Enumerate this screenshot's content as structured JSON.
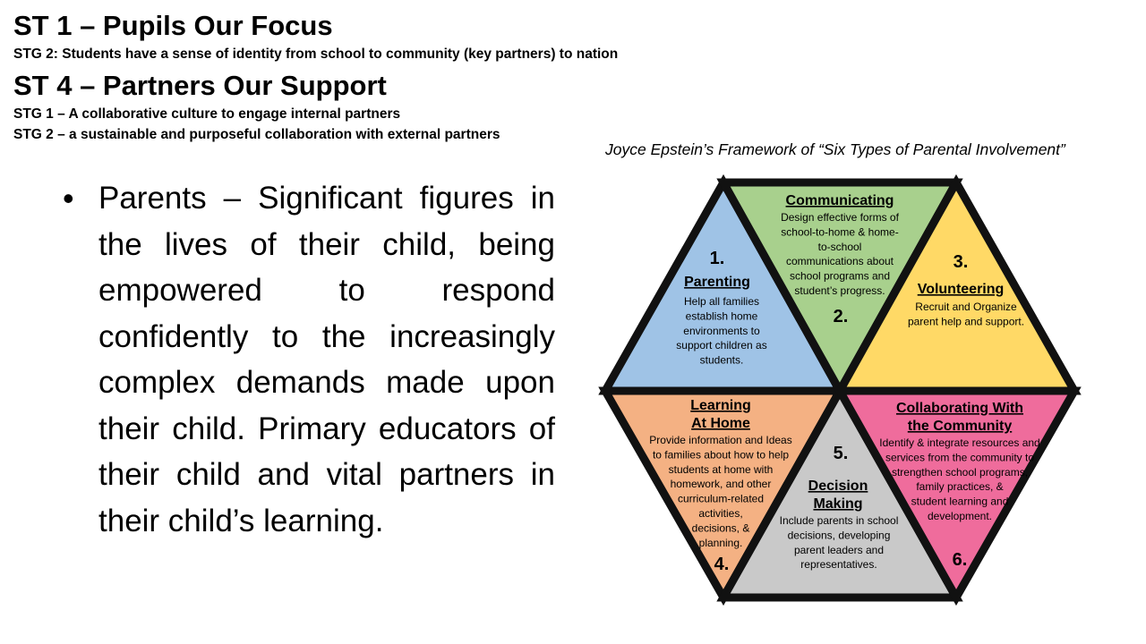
{
  "header": {
    "title_1": "ST 1 – Pupils Our Focus",
    "stg_1": "STG 2:  Students have a sense of identity from school to community (key partners) to nation",
    "title_2": "ST 4 – Partners Our Support",
    "stg_2": "STG 1 – A collaborative culture to engage internal partners",
    "stg_3": "STG 2 – a sustainable and purposeful collaboration with external partners"
  },
  "bullet": {
    "marker": "•",
    "text": "Parents – Significant figures in the lives of their child, being empowered to respond confidently to the increasingly complex demands made upon their child. Primary educators of their child and vital partners in their child’s learning."
  },
  "framework": {
    "caption": "Joyce Epstein’s Framework of “Six Types of Parental Involvement”",
    "sections": [
      {
        "number": "1.",
        "title": [
          "Parenting"
        ],
        "body": [
          "Help all families",
          "establish home",
          "environments to",
          "support children as",
          "students."
        ],
        "color": "#9fc3e6"
      },
      {
        "number": "2.",
        "title": [
          "Communicating"
        ],
        "body": [
          "Design effective forms of",
          "school-to-home & home-",
          "to-school",
          "communications about",
          "school programs and",
          "student’s progress."
        ],
        "color": "#a8d08d"
      },
      {
        "number": "3.",
        "title": [
          "Volunteering"
        ],
        "body": [
          "Recruit and Organize",
          "parent help and support."
        ],
        "color": "#ffd966"
      },
      {
        "number": "4.",
        "title": [
          "Learning",
          "At Home"
        ],
        "body": [
          "Provide information and Ideas",
          "to families about how to help",
          "students at home with",
          "homework, and other",
          "curriculum-related",
          "activities,",
          "decisions, &",
          "planning."
        ],
        "color": "#f4b183"
      },
      {
        "number": "5.",
        "title": [
          "Decision",
          "Making"
        ],
        "body": [
          "Include parents in school",
          "decisions, developing",
          "parent leaders and",
          "representatives."
        ],
        "color": "#c9c9c9"
      },
      {
        "number": "6.",
        "title": [
          "Collaborating With",
          "the Community"
        ],
        "body": [
          "Identify & integrate resources and",
          "services from the community to",
          "strengthen school programs,",
          "family practices, &",
          "student learning and",
          "development."
        ],
        "color": "#ef6c9c"
      }
    ]
  }
}
